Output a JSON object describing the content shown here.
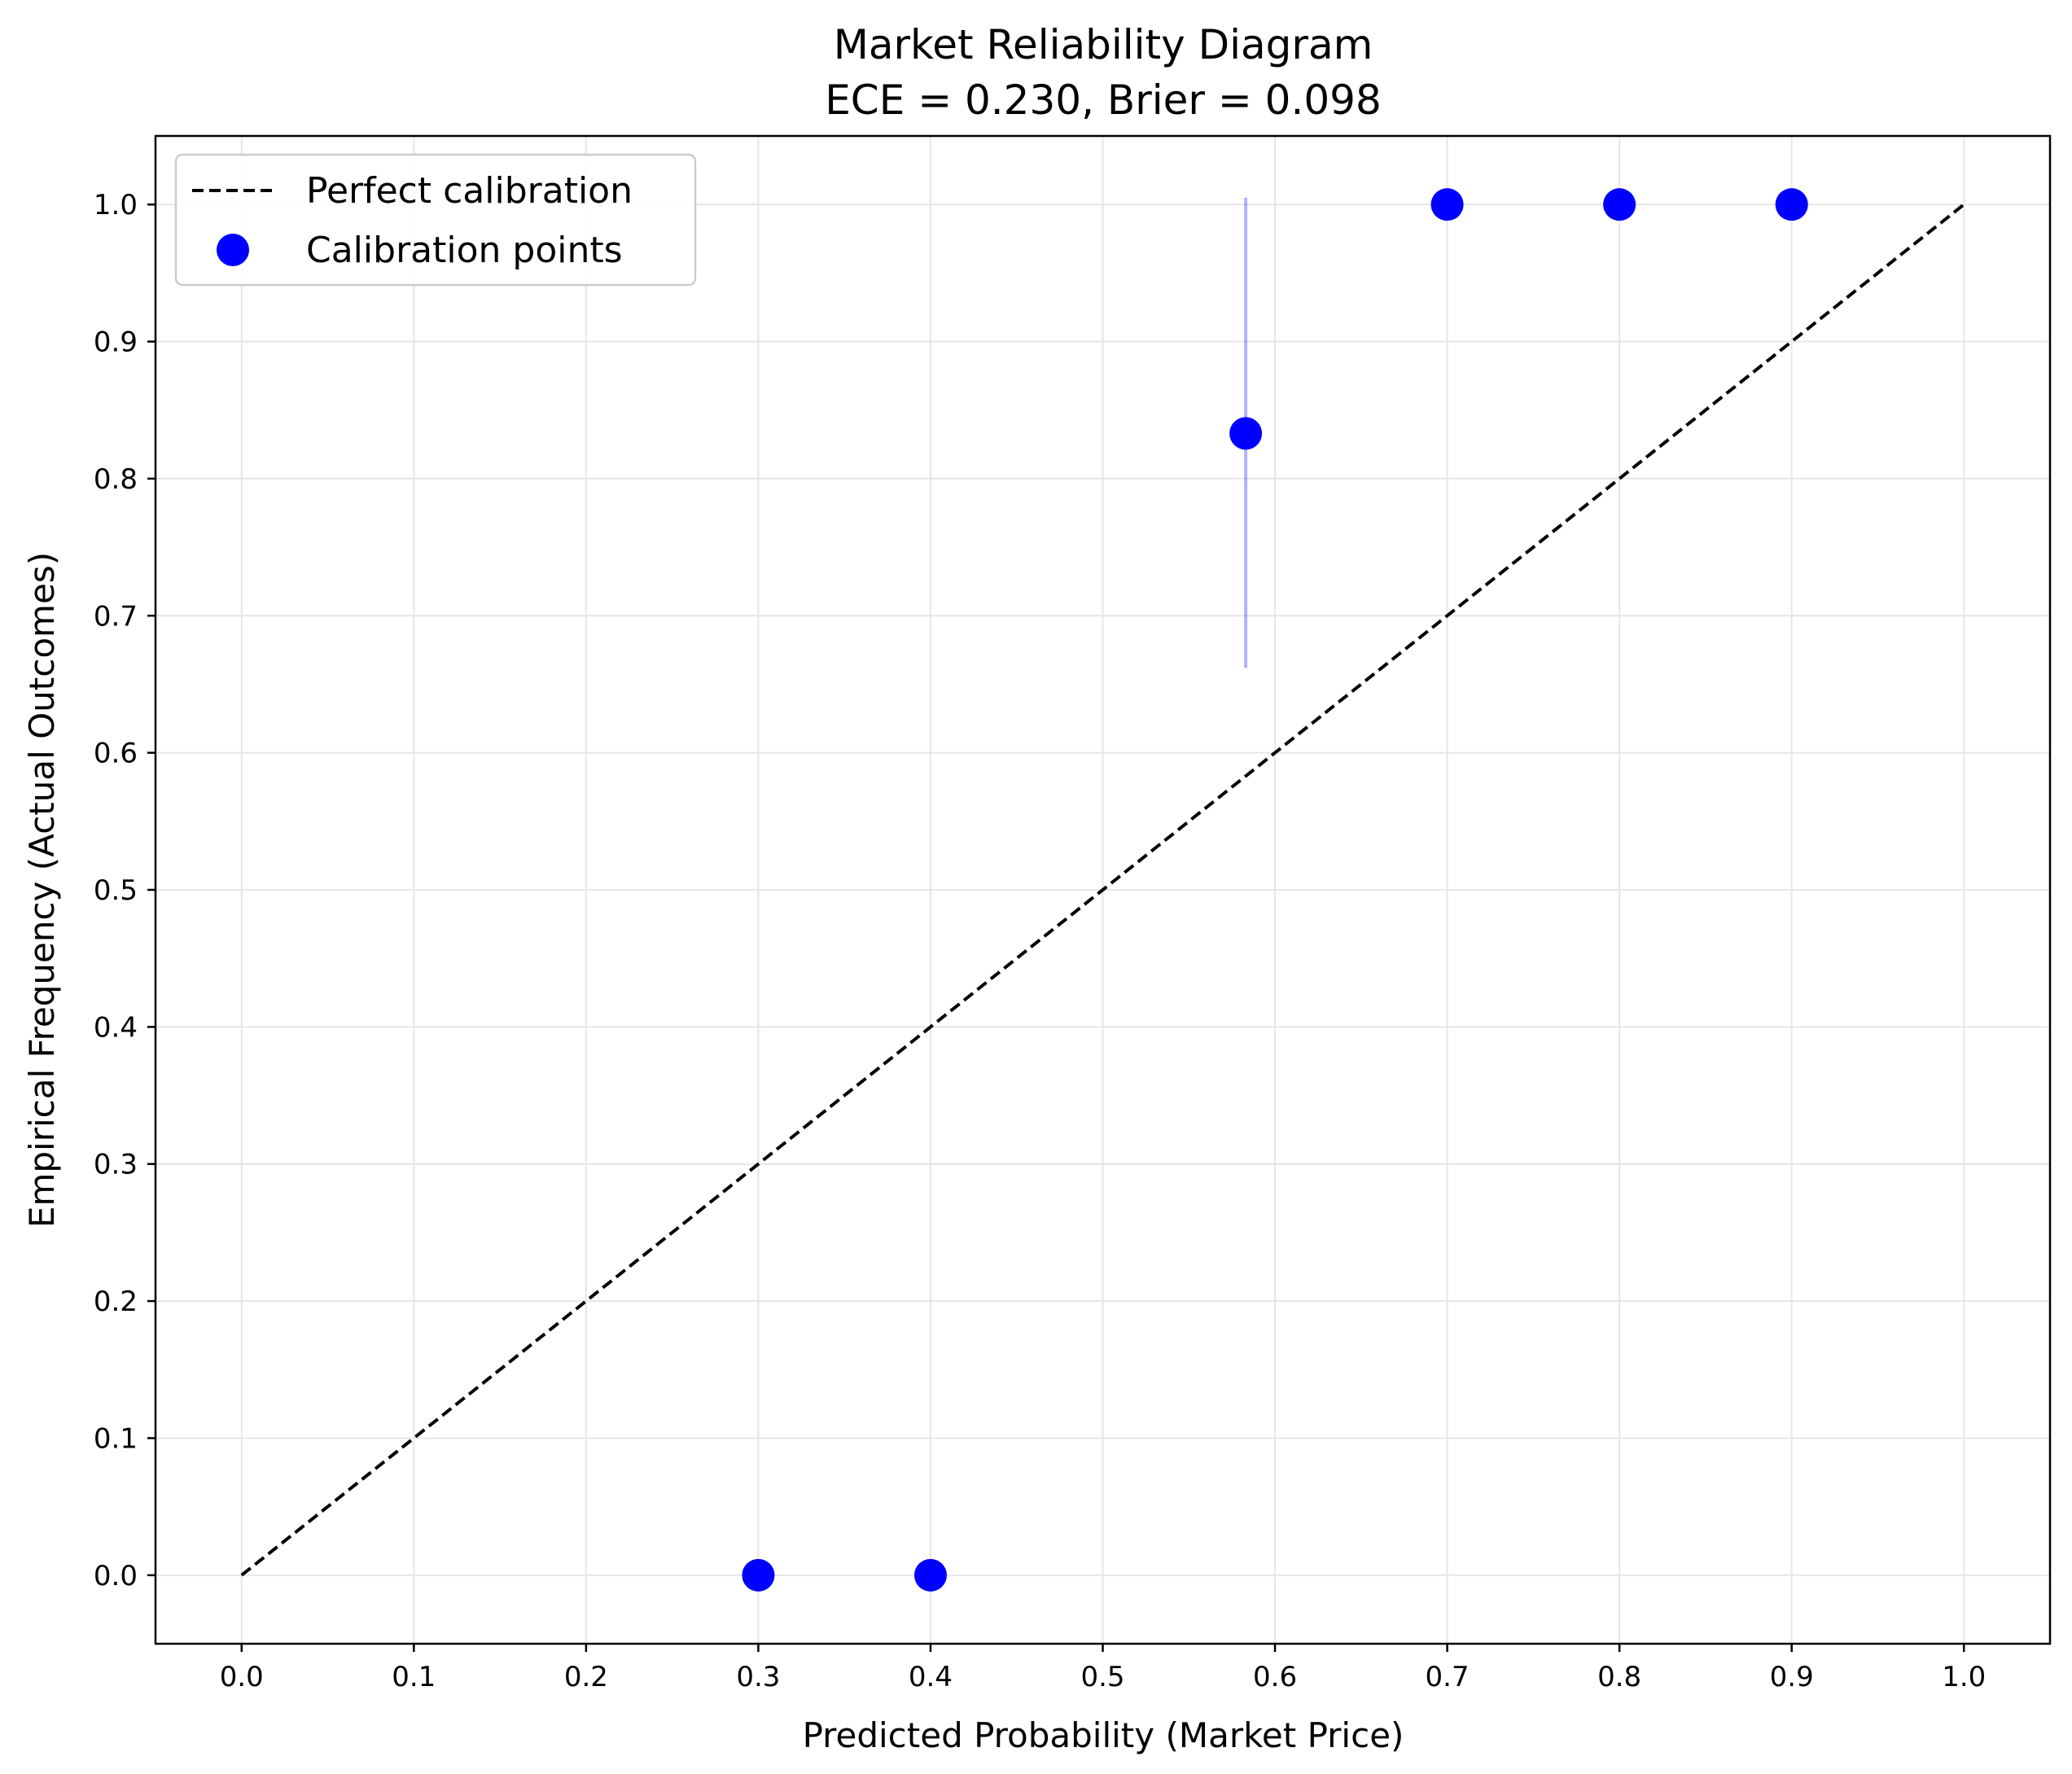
{
  "chart_data": {
    "type": "scatter",
    "title": "Market Reliability Diagram",
    "subtitle": "ECE = 0.230, Brier = 0.098",
    "xlabel": "Predicted Probability (Market Price)",
    "ylabel": "Empirical Frequency (Actual Outcomes)",
    "xlim": [
      -0.05,
      1.05
    ],
    "ylim": [
      -0.05,
      1.05
    ],
    "xticks": [
      "0.0",
      "0.1",
      "0.2",
      "0.3",
      "0.4",
      "0.5",
      "0.6",
      "0.7",
      "0.8",
      "0.9",
      "1.0"
    ],
    "yticks": [
      "0.0",
      "0.1",
      "0.2",
      "0.3",
      "0.4",
      "0.5",
      "0.6",
      "0.7",
      "0.8",
      "0.9",
      "1.0"
    ],
    "grid": true,
    "legend_position": "top-left",
    "series": [
      {
        "name": "Perfect calibration",
        "kind": "line",
        "style": "dashed",
        "color": "#000000",
        "x": [
          0.0,
          1.0
        ],
        "y": [
          0.0,
          1.0
        ]
      },
      {
        "name": "Calibration points",
        "kind": "scatter",
        "color": "#0000ff",
        "x": [
          0.3,
          0.4,
          0.583,
          0.7,
          0.8,
          0.9
        ],
        "y": [
          0.0,
          0.0,
          0.833,
          1.0,
          1.0,
          1.0
        ]
      }
    ],
    "error_bars": [
      {
        "x": 0.583,
        "y_low": 0.662,
        "y_high": 1.005,
        "color": "#0000ff"
      }
    ]
  }
}
